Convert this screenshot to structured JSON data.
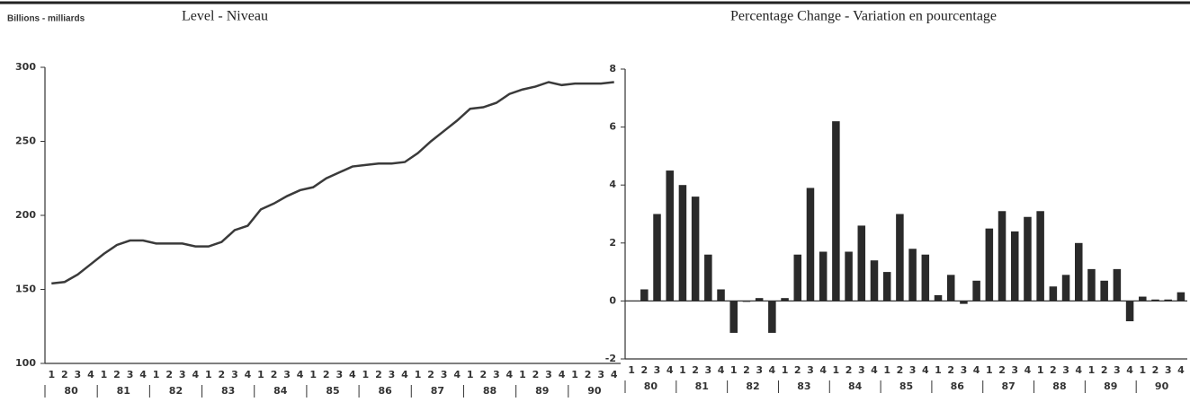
{
  "chart_data": [
    {
      "type": "line",
      "title": "Level - Niveau",
      "y_label": "Billions - milliards",
      "categories": [
        "1",
        "2",
        "3",
        "4",
        "1",
        "2",
        "3",
        "4",
        "1",
        "2",
        "3",
        "4",
        "1",
        "2",
        "3",
        "4",
        "1",
        "2",
        "3",
        "4",
        "1",
        "2",
        "3",
        "4",
        "1",
        "2",
        "3",
        "4",
        "1",
        "2",
        "3",
        "4",
        "1",
        "2",
        "3",
        "4",
        "1",
        "2",
        "3",
        "4",
        "1",
        "2",
        "3",
        "4"
      ],
      "groups": [
        "80",
        "81",
        "82",
        "83",
        "84",
        "85",
        "86",
        "87",
        "88",
        "89",
        "90"
      ],
      "values": [
        154,
        155,
        160,
        167,
        174,
        180,
        183,
        183,
        181,
        181,
        181,
        179,
        179,
        182,
        190,
        193,
        204,
        208,
        213,
        217,
        219,
        225,
        229,
        233,
        234,
        235,
        235,
        236,
        242,
        250,
        257,
        264,
        272,
        273,
        276,
        282,
        285,
        287,
        290,
        288,
        289,
        289,
        289,
        290
      ],
      "color": "#3a3a3a",
      "ylim": [
        100,
        300
      ],
      "yticks": [
        100,
        150,
        200,
        250,
        300
      ]
    },
    {
      "type": "bar",
      "title": "Percentage Change - Variation en pourcentage",
      "categories": [
        "1",
        "2",
        "3",
        "4",
        "1",
        "2",
        "3",
        "4",
        "1",
        "2",
        "3",
        "4",
        "1",
        "2",
        "3",
        "4",
        "1",
        "2",
        "3",
        "4",
        "1",
        "2",
        "3",
        "4",
        "1",
        "2",
        "3",
        "4",
        "1",
        "2",
        "3",
        "4",
        "1",
        "2",
        "3",
        "4",
        "1",
        "2",
        "3",
        "4",
        "1",
        "2",
        "3",
        "4"
      ],
      "groups": [
        "80",
        "81",
        "82",
        "83",
        "84",
        "85",
        "86",
        "87",
        "88",
        "89",
        "90"
      ],
      "values": [
        null,
        0.4,
        3.0,
        4.5,
        4.0,
        3.6,
        1.6,
        0.4,
        -1.1,
        0.0,
        0.1,
        -1.1,
        0.1,
        1.6,
        3.9,
        1.7,
        6.2,
        1.7,
        2.6,
        1.4,
        1.0,
        3.0,
        1.8,
        1.6,
        0.2,
        0.9,
        -0.1,
        0.7,
        2.5,
        3.1,
        2.4,
        2.9,
        3.1,
        0.5,
        0.9,
        2.0,
        1.1,
        0.7,
        1.1,
        -0.7,
        0.15,
        0.05,
        0.05,
        0.3
      ],
      "color": "#2a2a2a",
      "ylim": [
        -2,
        8
      ],
      "yticks": [
        -2,
        0,
        2,
        4,
        6,
        8
      ]
    }
  ]
}
